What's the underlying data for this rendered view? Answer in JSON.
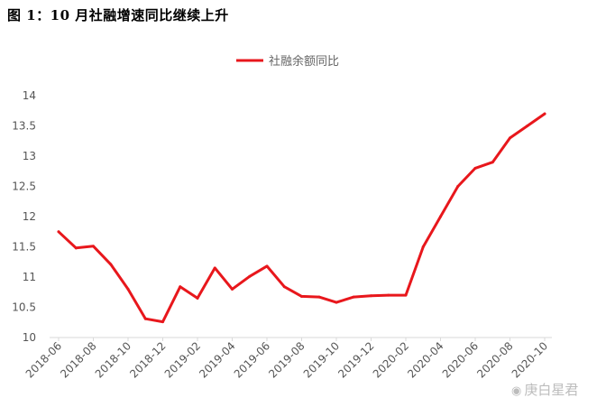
{
  "figure_title": "图 1：10 月社融增速同比继续上升",
  "watermark": "庚白星君",
  "colors": {
    "series": "#e8171c",
    "axis": "#d9d9d9"
  },
  "chart_data": {
    "type": "line",
    "legend": "社融余额同比",
    "legend_position": "top-center",
    "grid": false,
    "ylim": [
      10,
      14
    ],
    "y_ticks": [
      "10",
      "10.5",
      "11",
      "11.5",
      "12",
      "12.5",
      "13",
      "13.5",
      "14"
    ],
    "x_tick_labels": [
      "2018-06",
      "2018-08",
      "2018-10",
      "2018-12",
      "2019-02",
      "2019-04",
      "2019-06",
      "2019-08",
      "2019-10",
      "2019-12",
      "2020-02",
      "2020-04",
      "2020-06",
      "2020-08",
      "2020-10"
    ],
    "x": [
      "2018-06",
      "2018-07",
      "2018-08",
      "2018-09",
      "2018-10",
      "2018-11",
      "2018-12",
      "2019-01",
      "2019-02",
      "2019-03",
      "2019-04",
      "2019-05",
      "2019-06",
      "2019-07",
      "2019-08",
      "2019-09",
      "2019-10",
      "2019-11",
      "2019-12",
      "2020-01",
      "2020-02",
      "2020-03",
      "2020-04",
      "2020-05",
      "2020-06",
      "2020-07",
      "2020-08",
      "2020-09",
      "2020-10"
    ],
    "values": [
      11.75,
      11.48,
      11.51,
      11.21,
      10.8,
      10.31,
      10.26,
      10.84,
      10.65,
      11.15,
      10.8,
      11.01,
      11.18,
      10.84,
      10.68,
      10.67,
      10.58,
      10.67,
      10.69,
      10.7,
      10.7,
      11.5,
      12.0,
      12.5,
      12.8,
      12.9,
      13.3,
      13.5,
      13.7
    ]
  }
}
